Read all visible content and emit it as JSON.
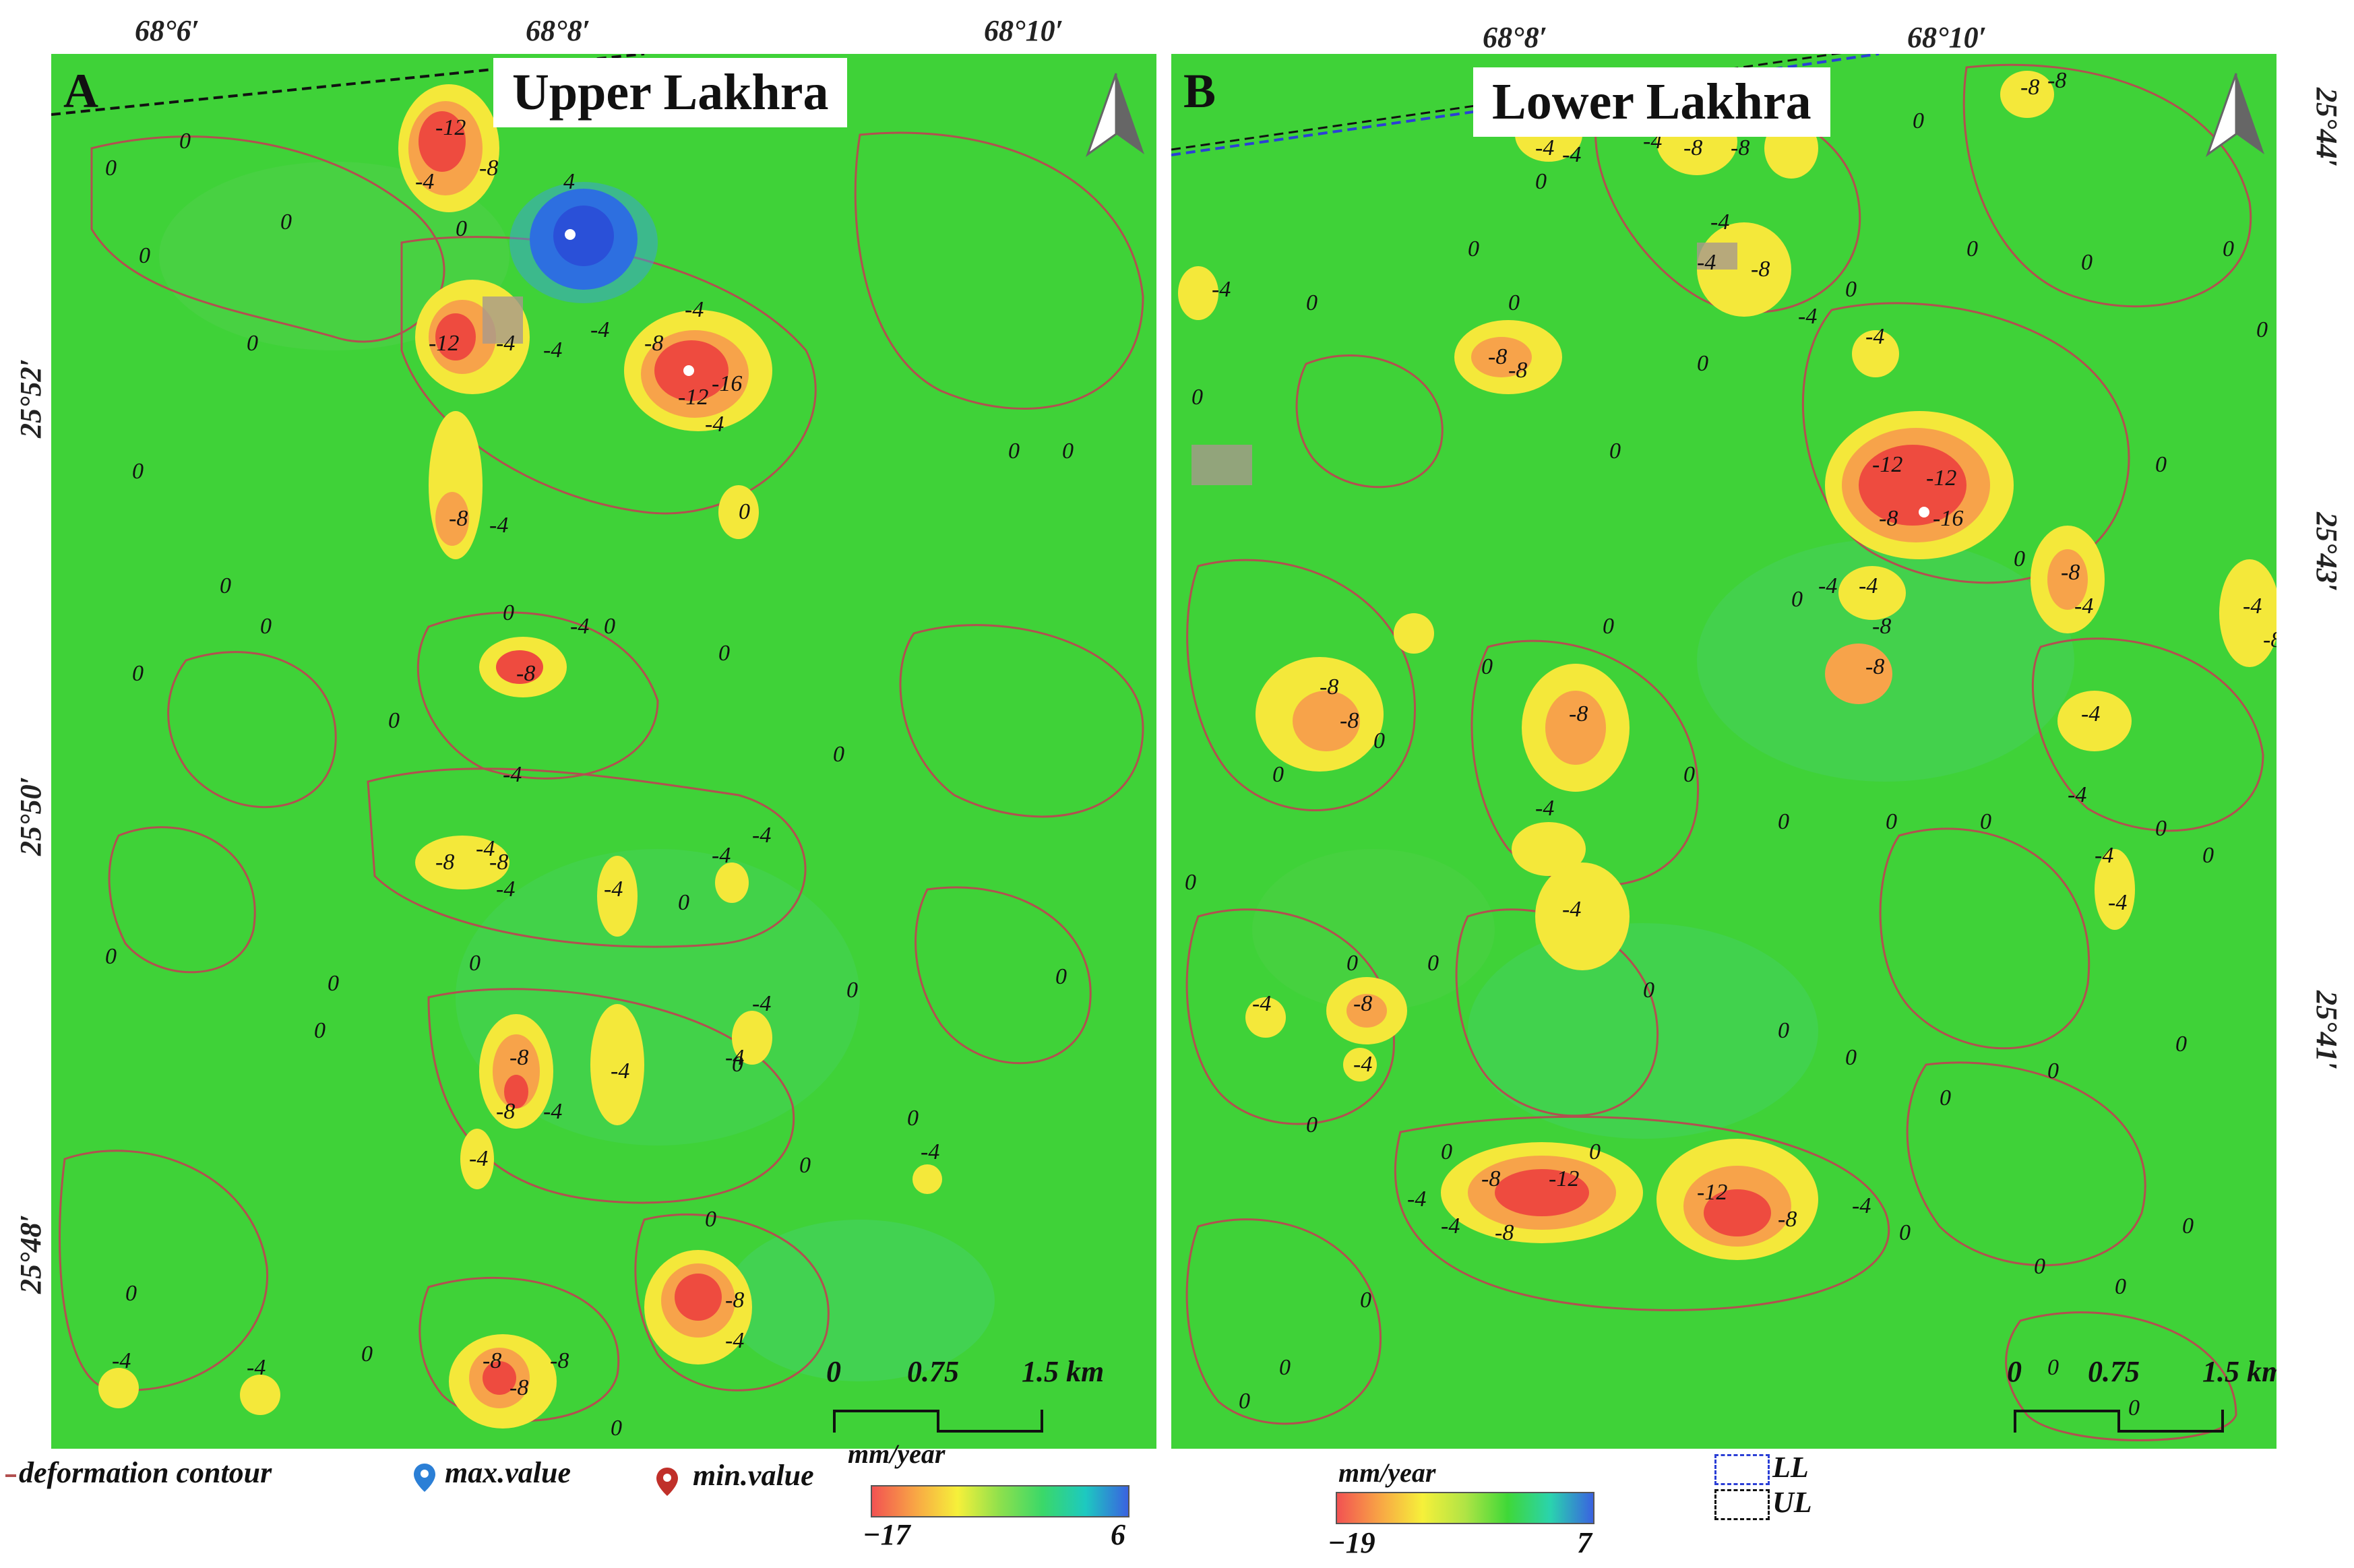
{
  "panels": [
    {
      "letter": "A",
      "title": "Upper Lakhra",
      "longitude_labels": [
        "68°6′",
        "68°8′",
        "68°10′"
      ],
      "latitude_labels": [
        "25°52′",
        "25°50′",
        "25°48′"
      ],
      "scalebar": {
        "labels": [
          "0",
          "0.75",
          "1.5 km"
        ]
      },
      "colorbar": {
        "unit": "mm/year",
        "min": "−17",
        "max": "6"
      }
    },
    {
      "letter": "B",
      "title": "Lower Lakhra",
      "longitude_labels": [
        "68°8′",
        "68°10′"
      ],
      "latitude_labels": [
        "25°44′",
        "25°43′",
        "25°41′"
      ],
      "scalebar": {
        "labels": [
          "0",
          "0.75",
          "1.5 km"
        ]
      },
      "colorbar": {
        "unit": "mm/year",
        "min": "−19",
        "max": "7"
      }
    }
  ],
  "legend": {
    "contour": "deformation contour",
    "max_value": "max.value",
    "min_value": "min.value",
    "ll": "LL",
    "ul": "UL"
  },
  "contour_labels_a": [
    "0",
    "-4",
    "-8",
    "-12",
    "-16",
    "4"
  ],
  "contour_labels_b": [
    "0",
    "-4",
    "-8",
    "-12"
  ],
  "colors": {
    "background_green": "#3fd238",
    "contour_line": "#b25050",
    "subsidence_red": "#ee4b3f",
    "subsidence_yellow": "#f4e83a",
    "uplift_blue": "#2d5fe0",
    "ll_frame": "#2b3fd6",
    "ul_frame": "#111111"
  }
}
